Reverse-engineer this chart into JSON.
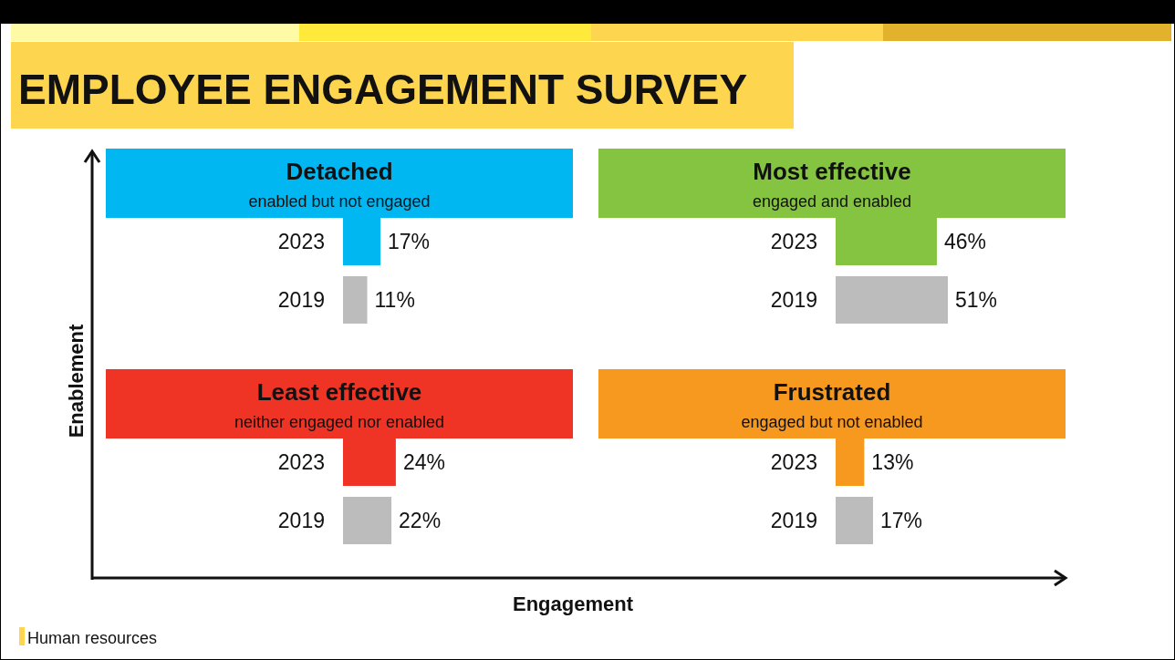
{
  "chart_data": [
    {
      "type": "bar",
      "orientation": "horizontal",
      "title": "Detached",
      "subtitle": "enabled but not engaged",
      "categories": [
        "2023",
        "2019"
      ],
      "values": [
        17,
        11
      ],
      "colors": [
        "#00b7f1",
        "#bcbcbc"
      ],
      "value_labels": [
        "17%",
        "11%"
      ]
    },
    {
      "type": "bar",
      "orientation": "horizontal",
      "title": "Most effective",
      "subtitle": "engaged and enabled",
      "categories": [
        "2023",
        "2019"
      ],
      "values": [
        46,
        51
      ],
      "colors": [
        "#85c441",
        "#bcbcbc"
      ],
      "value_labels": [
        "46%",
        "51%"
      ]
    },
    {
      "type": "bar",
      "orientation": "horizontal",
      "title": "Least effective",
      "subtitle": "neither engaged nor enabled",
      "categories": [
        "2023",
        "2019"
      ],
      "values": [
        24,
        22
      ],
      "colors": [
        "#ef3325",
        "#bcbcbc"
      ],
      "value_labels": [
        "24%",
        "22%"
      ]
    },
    {
      "type": "bar",
      "orientation": "horizontal",
      "title": "Frustrated",
      "subtitle": "engaged but not enabled",
      "categories": [
        "2023",
        "2019"
      ],
      "values": [
        13,
        17
      ],
      "colors": [
        "#f7991f",
        "#bcbcbc"
      ],
      "value_labels": [
        "13%",
        "17%"
      ]
    },
    {
      "type": "other",
      "title": "EMPLOYEE ENGAGEMENT SURVEY",
      "xlabel": "Engagement",
      "ylabel": "Enablement",
      "annotations": [
        "Human resources"
      ]
    }
  ]
}
